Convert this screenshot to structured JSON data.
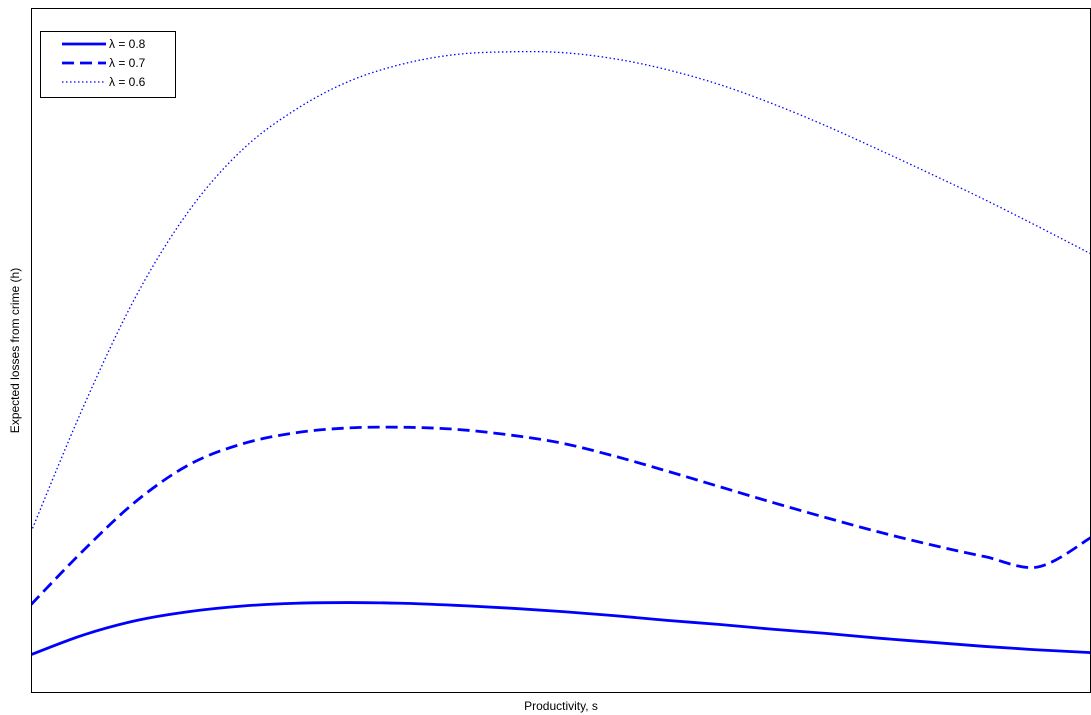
{
  "chart_data": {
    "type": "line",
    "title": "",
    "xlabel": "Productivity, s",
    "ylabel": "Expected losses from crime (h)",
    "xlim": [
      0,
      1
    ],
    "ylim": [
      0,
      1
    ],
    "grid": false,
    "x_ticks_shown": false,
    "y_ticks_shown": false,
    "legend_position": "top-left",
    "series": [
      {
        "name": "λ = 0.8",
        "line_style": "solid",
        "color": "#0000ff",
        "x": [
          0.0,
          0.05,
          0.1,
          0.15,
          0.2,
          0.25,
          0.3,
          0.35,
          0.4,
          0.45,
          0.5,
          0.55,
          0.6,
          0.65,
          0.7,
          0.75,
          0.8,
          0.85,
          0.9,
          0.95,
          1.0
        ],
        "y": [
          0.056,
          0.085,
          0.106,
          0.119,
          0.127,
          0.131,
          0.132,
          0.131,
          0.128,
          0.124,
          0.119,
          0.113,
          0.106,
          0.1,
          0.093,
          0.087,
          0.08,
          0.074,
          0.068,
          0.063,
          0.059
        ]
      },
      {
        "name": "λ = 0.7",
        "line_style": "dashed",
        "color": "#0000ff",
        "x": [
          0.0,
          0.05,
          0.1,
          0.15,
          0.2,
          0.25,
          0.3,
          0.35,
          0.4,
          0.45,
          0.5,
          0.55,
          0.6,
          0.65,
          0.7,
          0.75,
          0.8,
          0.85,
          0.9,
          0.95,
          1.0
        ],
        "y": [
          0.129,
          0.209,
          0.281,
          0.334,
          0.364,
          0.38,
          0.387,
          0.388,
          0.385,
          0.377,
          0.365,
          0.346,
          0.324,
          0.301,
          0.278,
          0.256,
          0.235,
          0.216,
          0.199,
          0.184,
          0.227
        ]
      },
      {
        "name": "λ = 0.6",
        "line_style": "dotted",
        "color": "#0000ff",
        "x": [
          0.0,
          0.05,
          0.1,
          0.15,
          0.2,
          0.25,
          0.3,
          0.35,
          0.4,
          0.45,
          0.5,
          0.55,
          0.6,
          0.65,
          0.7,
          0.75,
          0.8,
          0.85,
          0.9,
          0.95,
          1.0
        ],
        "y": [
          0.235,
          0.42,
          0.582,
          0.706,
          0.794,
          0.852,
          0.893,
          0.918,
          0.932,
          0.936,
          0.935,
          0.926,
          0.91,
          0.888,
          0.86,
          0.828,
          0.793,
          0.757,
          0.72,
          0.681,
          0.641
        ]
      }
    ]
  }
}
